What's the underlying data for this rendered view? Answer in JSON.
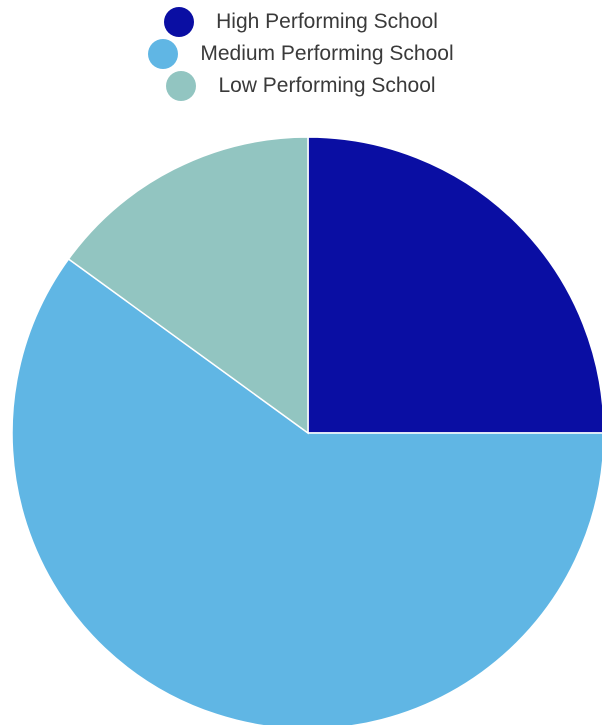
{
  "chart_data": {
    "type": "pie",
    "title": "",
    "legend_position": "top-center",
    "series": [
      {
        "name": "High Performing School",
        "value": 25,
        "color": "#0a0ea3"
      },
      {
        "name": "Medium Performing School",
        "value": 60,
        "color": "#60b6e4"
      },
      {
        "name": "Low Performing School",
        "value": 15,
        "color": "#92c5c1"
      }
    ],
    "start_angle_deg": 0,
    "direction": "clockwise",
    "slice_border_color": "#ffffff"
  }
}
